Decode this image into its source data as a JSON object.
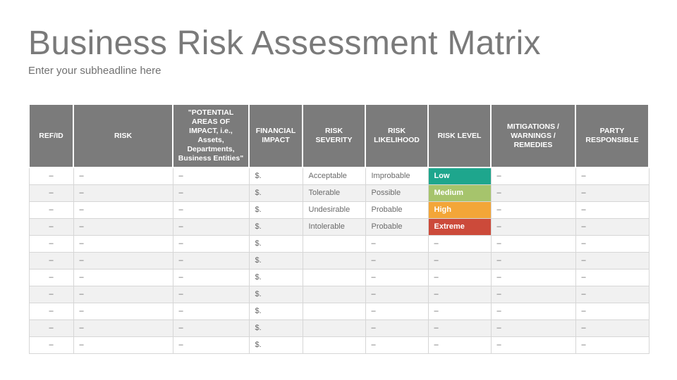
{
  "title": "Business Risk Assessment Matrix",
  "subtitle": "Enter your subheadline here",
  "colors": {
    "header_bg": "#7b7b7b",
    "low": "#1ea68d",
    "medium": "#a6c46c",
    "high": "#f3a638",
    "extreme": "#cc4a3a"
  },
  "columns": [
    {
      "label": "REF/ID"
    },
    {
      "label": "RISK"
    },
    {
      "label": "\"POTENTIAL AREAS OF IMPACT, i.e., Assets, Departments, Business Entities\""
    },
    {
      "label": "FINANCIAL IMPACT"
    },
    {
      "label": "RISK SEVERITY"
    },
    {
      "label": "RISK LIKELIHOOD"
    },
    {
      "label": "RISK LEVEL"
    },
    {
      "label": "MITIGATIONS / WARNINGS / REMEDIES"
    },
    {
      "label": "PARTY RESPONSIBLE"
    }
  ],
  "rows": [
    {
      "ref": "–",
      "risk": "–",
      "areas": "–",
      "financial": "$.",
      "severity": "Acceptable",
      "likelihood": "Improbable",
      "level": "Low",
      "level_color": "#1ea68d",
      "mitigations": "–",
      "party": "–"
    },
    {
      "ref": "–",
      "risk": "–",
      "areas": "–",
      "financial": "$.",
      "severity": "Tolerable",
      "likelihood": "Possible",
      "level": "Medium",
      "level_color": "#a6c46c",
      "mitigations": "–",
      "party": "–"
    },
    {
      "ref": "–",
      "risk": "–",
      "areas": "–",
      "financial": "$.",
      "severity": "Undesirable",
      "likelihood": "Probable",
      "level": "High",
      "level_color": "#f3a638",
      "mitigations": "–",
      "party": "–"
    },
    {
      "ref": "–",
      "risk": "–",
      "areas": "–",
      "financial": "$.",
      "severity": "Intolerable",
      "likelihood": "Probable",
      "level": "Extreme",
      "level_color": "#cc4a3a",
      "mitigations": "–",
      "party": "–"
    },
    {
      "ref": "–",
      "risk": "–",
      "areas": "–",
      "financial": "$.",
      "severity": "",
      "likelihood": "–",
      "level": "–",
      "level_color": "",
      "mitigations": "–",
      "party": "–"
    },
    {
      "ref": "–",
      "risk": "–",
      "areas": "–",
      "financial": "$.",
      "severity": "",
      "likelihood": "–",
      "level": "–",
      "level_color": "",
      "mitigations": "–",
      "party": "–"
    },
    {
      "ref": "–",
      "risk": "–",
      "areas": "–",
      "financial": "$.",
      "severity": "",
      "likelihood": "–",
      "level": "–",
      "level_color": "",
      "mitigations": "–",
      "party": "–"
    },
    {
      "ref": "–",
      "risk": "–",
      "areas": "–",
      "financial": "$.",
      "severity": "",
      "likelihood": "–",
      "level": "–",
      "level_color": "",
      "mitigations": "–",
      "party": "–"
    },
    {
      "ref": "–",
      "risk": "–",
      "areas": "–",
      "financial": "$.",
      "severity": "",
      "likelihood": "–",
      "level": "–",
      "level_color": "",
      "mitigations": "–",
      "party": "–"
    },
    {
      "ref": "–",
      "risk": "–",
      "areas": "–",
      "financial": "$.",
      "severity": "",
      "likelihood": "–",
      "level": "–",
      "level_color": "",
      "mitigations": "–",
      "party": "–"
    },
    {
      "ref": "–",
      "risk": "–",
      "areas": "–",
      "financial": "$.",
      "severity": "",
      "likelihood": "–",
      "level": "–",
      "level_color": "",
      "mitigations": "–",
      "party": "–"
    }
  ]
}
